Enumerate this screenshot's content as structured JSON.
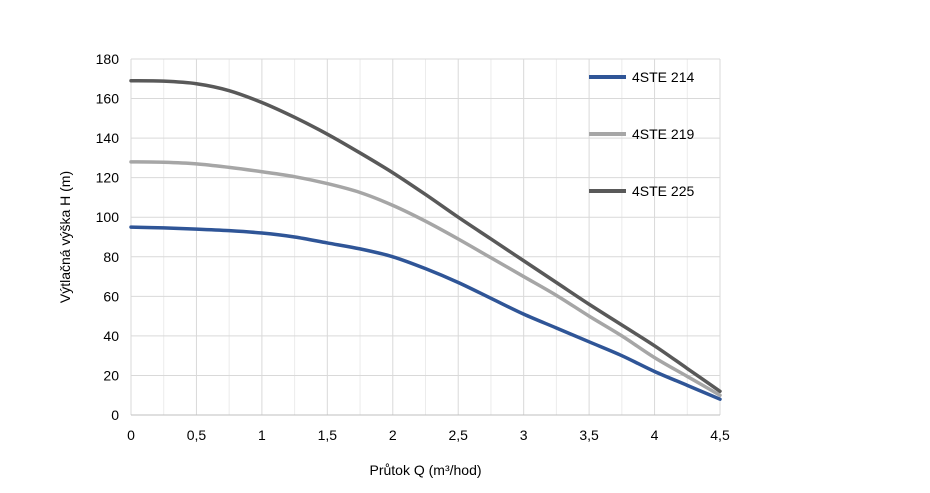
{
  "chart_data": {
    "type": "line",
    "title": "",
    "xlabel": "Průtok Q (m³/hod)",
    "ylabel": "Výtlačná výška H (m)",
    "xlim": [
      0,
      4.5
    ],
    "ylim": [
      0,
      180
    ],
    "x_ticks": [
      0,
      0.5,
      1,
      1.5,
      2,
      2.5,
      3,
      3.5,
      4,
      4.5
    ],
    "x_tick_labels": [
      "0",
      "0,5",
      "1",
      "1,5",
      "2",
      "2,5",
      "3",
      "3,5",
      "4",
      "4,5"
    ],
    "y_ticks": [
      0,
      20,
      40,
      60,
      80,
      100,
      120,
      140,
      160,
      180
    ],
    "y_tick_labels": [
      "0",
      "20",
      "40",
      "60",
      "80",
      "100",
      "120",
      "140",
      "160",
      "180"
    ],
    "grid": {
      "horizontal": true,
      "vertical": true
    },
    "legend_position": "top-right",
    "series": [
      {
        "name": "4STE 214",
        "color": "#2f5597",
        "x": [
          0,
          0.25,
          0.5,
          0.75,
          1,
          1.25,
          1.5,
          1.75,
          2,
          2.25,
          2.5,
          2.75,
          3,
          3.25,
          3.5,
          3.75,
          4,
          4.25,
          4.5
        ],
        "values": [
          95,
          94.6,
          94,
          93.2,
          92,
          90,
          87,
          84,
          80,
          74,
          67,
          59,
          51,
          44,
          37,
          30,
          22,
          15,
          8
        ]
      },
      {
        "name": "4STE 219",
        "color": "#a6a6a6",
        "x": [
          0,
          0.25,
          0.5,
          0.75,
          1,
          1.25,
          1.5,
          1.75,
          2,
          2.25,
          2.5,
          2.75,
          3,
          3.25,
          3.5,
          3.75,
          4,
          4.25,
          4.5
        ],
        "values": [
          128,
          127.8,
          127,
          125.2,
          123,
          120.5,
          117,
          112.5,
          106,
          98,
          89,
          79.5,
          70,
          60.5,
          50,
          40,
          29,
          19.5,
          10
        ]
      },
      {
        "name": "4STE 225",
        "color": "#595959",
        "x": [
          0,
          0.25,
          0.5,
          0.75,
          1,
          1.25,
          1.5,
          1.75,
          2,
          2.25,
          2.5,
          2.75,
          3,
          3.25,
          3.5,
          3.75,
          4,
          4.25,
          4.5
        ],
        "values": [
          169,
          168.8,
          167.5,
          164,
          158,
          150.5,
          142,
          132.5,
          122.5,
          111.5,
          100,
          89,
          78,
          67,
          56,
          45.5,
          35,
          23.5,
          12
        ]
      }
    ]
  }
}
